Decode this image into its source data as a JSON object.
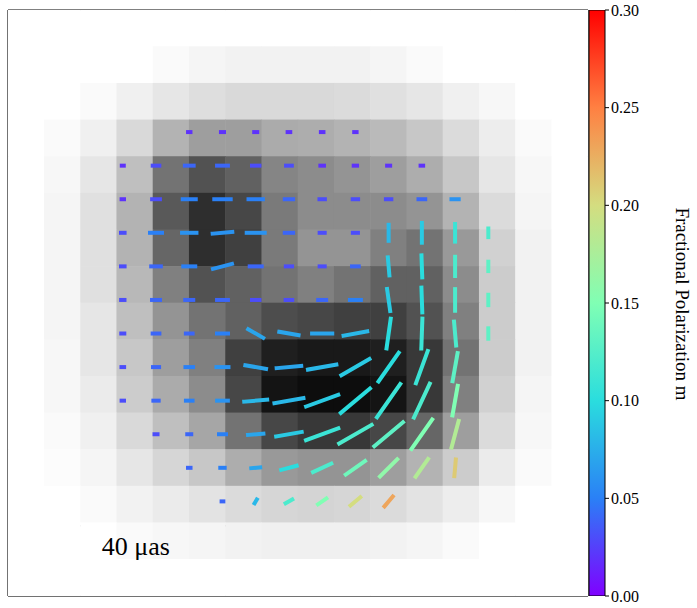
{
  "chart_data": {
    "type": "polarimetric_image",
    "tick_labels": false,
    "xlim": [
      -48,
      48
    ],
    "ylim": [
      -48,
      48
    ],
    "intensity": {
      "x": [
        -45,
        -39,
        -33,
        -27,
        -21,
        -15,
        -9,
        -3,
        3,
        9,
        15,
        21,
        27,
        33,
        39,
        45
      ],
      "y": [
        45,
        39,
        33,
        27,
        21,
        15,
        9,
        3,
        -3,
        -9,
        -15,
        -21,
        -27,
        -33,
        -39,
        -45
      ],
      "cells": [
        [
          0,
          0,
          0,
          0,
          0,
          0,
          0,
          0,
          0,
          0,
          0,
          0,
          0,
          0,
          0,
          0
        ],
        [
          0,
          0,
          0,
          0,
          0.02,
          0.04,
          0.05,
          0.05,
          0.05,
          0.05,
          0.04,
          0.02,
          0,
          0,
          0,
          0
        ],
        [
          0,
          0,
          0.02,
          0.06,
          0.1,
          0.13,
          0.15,
          0.15,
          0.15,
          0.14,
          0.12,
          0.1,
          0.06,
          0.03,
          0,
          0
        ],
        [
          0,
          0.02,
          0.06,
          0.15,
          0.3,
          0.38,
          0.38,
          0.33,
          0.32,
          0.3,
          0.27,
          0.22,
          0.14,
          0.07,
          0.02,
          0
        ],
        [
          0,
          0.03,
          0.1,
          0.25,
          0.55,
          0.68,
          0.62,
          0.48,
          0.45,
          0.42,
          0.38,
          0.32,
          0.22,
          0.1,
          0.03,
          0
        ],
        [
          0,
          0.04,
          0.12,
          0.3,
          0.65,
          0.82,
          0.72,
          0.52,
          0.45,
          0.45,
          0.45,
          0.42,
          0.3,
          0.14,
          0.04,
          0
        ],
        [
          0,
          0.04,
          0.12,
          0.3,
          0.6,
          0.82,
          0.75,
          0.52,
          0.42,
          0.42,
          0.5,
          0.55,
          0.4,
          0.18,
          0.05,
          0
        ],
        [
          0,
          0.04,
          0.12,
          0.28,
          0.5,
          0.68,
          0.62,
          0.55,
          0.5,
          0.55,
          0.62,
          0.62,
          0.45,
          0.2,
          0.05,
          0
        ],
        [
          0,
          0.04,
          0.1,
          0.25,
          0.42,
          0.55,
          0.62,
          0.7,
          0.72,
          0.75,
          0.75,
          0.68,
          0.5,
          0.2,
          0.05,
          0
        ],
        [
          0,
          0.03,
          0.1,
          0.22,
          0.38,
          0.5,
          0.75,
          0.88,
          0.9,
          0.9,
          0.88,
          0.78,
          0.55,
          0.2,
          0.05,
          0
        ],
        [
          0,
          0.03,
          0.08,
          0.2,
          0.33,
          0.45,
          0.72,
          0.92,
          0.95,
          0.95,
          0.92,
          0.78,
          0.5,
          0.18,
          0.04,
          0
        ],
        [
          0,
          0.02,
          0.06,
          0.15,
          0.25,
          0.35,
          0.55,
          0.72,
          0.78,
          0.78,
          0.72,
          0.6,
          0.38,
          0.14,
          0.03,
          0
        ],
        [
          0,
          0.01,
          0.04,
          0.1,
          0.16,
          0.22,
          0.32,
          0.4,
          0.42,
          0.42,
          0.38,
          0.3,
          0.2,
          0.08,
          0.02,
          0
        ],
        [
          0,
          0,
          0.02,
          0.05,
          0.08,
          0.11,
          0.14,
          0.16,
          0.17,
          0.16,
          0.14,
          0.11,
          0.07,
          0.03,
          0,
          0
        ],
        [
          0,
          0,
          0,
          0.02,
          0.03,
          0.04,
          0.05,
          0.06,
          0.06,
          0.06,
          0.05,
          0.04,
          0.02,
          0,
          0,
          0
        ],
        [
          0,
          0,
          0,
          0,
          0,
          0,
          0,
          0,
          0,
          0,
          0,
          0,
          0,
          0,
          0,
          0
        ]
      ]
    },
    "polarization": {
      "x": [
        -29,
        -23.5,
        -18,
        -12.5,
        -7,
        -1.5,
        4,
        9.5,
        15,
        20.5,
        26,
        31.5
      ],
      "y": [
        28,
        22.5,
        17,
        11.5,
        6,
        0.5,
        -5,
        -10.5,
        -16,
        -21.5,
        -27,
        -32.5
      ],
      "m": [
        [
          null,
          null,
          0.02,
          0.02,
          0.02,
          0.02,
          0.02,
          0.02,
          null,
          null,
          null,
          null
        ],
        [
          0.02,
          0.03,
          0.04,
          0.04,
          0.03,
          0.03,
          0.02,
          0.02,
          0.02,
          0.02,
          null,
          null
        ],
        [
          0.02,
          0.03,
          0.05,
          0.05,
          0.05,
          0.04,
          0.03,
          0.03,
          0.03,
          0.04,
          0.06,
          null
        ],
        [
          0.03,
          0.05,
          0.06,
          0.06,
          0.06,
          0.04,
          0.03,
          0.03,
          0.08,
          0.09,
          0.11,
          0.12
        ],
        [
          0.03,
          0.04,
          0.05,
          0.06,
          0.04,
          0.03,
          0.03,
          0.04,
          0.09,
          0.1,
          0.12,
          0.13
        ],
        [
          0.03,
          0.04,
          0.04,
          0.04,
          0.03,
          0.03,
          0.04,
          0.05,
          0.09,
          0.1,
          0.12,
          0.13
        ],
        [
          0.03,
          0.04,
          0.04,
          0.05,
          0.07,
          0.07,
          0.07,
          0.08,
          0.1,
          0.11,
          0.12,
          0.13
        ],
        [
          0.03,
          0.04,
          0.05,
          0.06,
          0.07,
          0.07,
          0.08,
          0.09,
          0.1,
          0.11,
          0.13,
          null
        ],
        [
          0.03,
          0.04,
          0.05,
          0.06,
          0.08,
          0.08,
          0.09,
          0.1,
          0.11,
          0.12,
          0.15,
          null
        ],
        [
          null,
          0.03,
          0.04,
          0.05,
          0.07,
          0.09,
          0.11,
          0.12,
          0.13,
          0.15,
          0.18,
          null
        ],
        [
          null,
          null,
          0.04,
          0.05,
          0.07,
          0.1,
          0.12,
          0.14,
          0.16,
          0.18,
          0.21,
          null
        ],
        [
          null,
          null,
          null,
          0.04,
          0.08,
          0.12,
          0.15,
          0.2,
          0.23,
          null,
          null,
          null
        ]
      ],
      "angle": [
        [
          null,
          null,
          0,
          0,
          0,
          0,
          0,
          0,
          null,
          null,
          null,
          null
        ],
        [
          0,
          0,
          0,
          0,
          0,
          0,
          0,
          0,
          0,
          0,
          null,
          null
        ],
        [
          0,
          0,
          0,
          0,
          0,
          0,
          0,
          0,
          0,
          0,
          0,
          null
        ],
        [
          0,
          0,
          0,
          5,
          0,
          0,
          0,
          0,
          90,
          90,
          90,
          90
        ],
        [
          0,
          0,
          0,
          15,
          0,
          0,
          0,
          0,
          95,
          92,
          90,
          90
        ],
        [
          0,
          0,
          0,
          0,
          0,
          0,
          0,
          0,
          98,
          92,
          90,
          90
        ],
        [
          0,
          0,
          0,
          0,
          -30,
          -10,
          0,
          10,
          82,
          88,
          95,
          90
        ],
        [
          0,
          0,
          0,
          0,
          -10,
          5,
          10,
          30,
          55,
          70,
          80,
          null
        ],
        [
          0,
          0,
          0,
          0,
          5,
          10,
          20,
          40,
          55,
          65,
          80,
          null
        ],
        [
          null,
          0,
          0,
          0,
          5,
          10,
          20,
          30,
          40,
          55,
          75,
          null
        ],
        [
          null,
          null,
          0,
          0,
          5,
          15,
          25,
          35,
          45,
          55,
          85,
          null
        ],
        [
          null,
          null,
          null,
          0,
          60,
          30,
          35,
          40,
          50,
          null,
          null,
          null
        ]
      ]
    },
    "colorbar": {
      "label": "Fractional Polarization m",
      "range": [
        0,
        0.3
      ],
      "ticks": [
        {
          "value": 0,
          "label": "0.00"
        },
        {
          "value": 0.05,
          "label": "0.05"
        },
        {
          "value": 0.1,
          "label": "0.10"
        },
        {
          "value": 0.15,
          "label": "0.15"
        },
        {
          "value": 0.2,
          "label": "0.20"
        },
        {
          "value": 0.25,
          "label": "0.25"
        },
        {
          "value": 0.3,
          "label": "0.30"
        }
      ]
    },
    "scale_bar": {
      "length": 40,
      "label": "40 μas"
    }
  }
}
